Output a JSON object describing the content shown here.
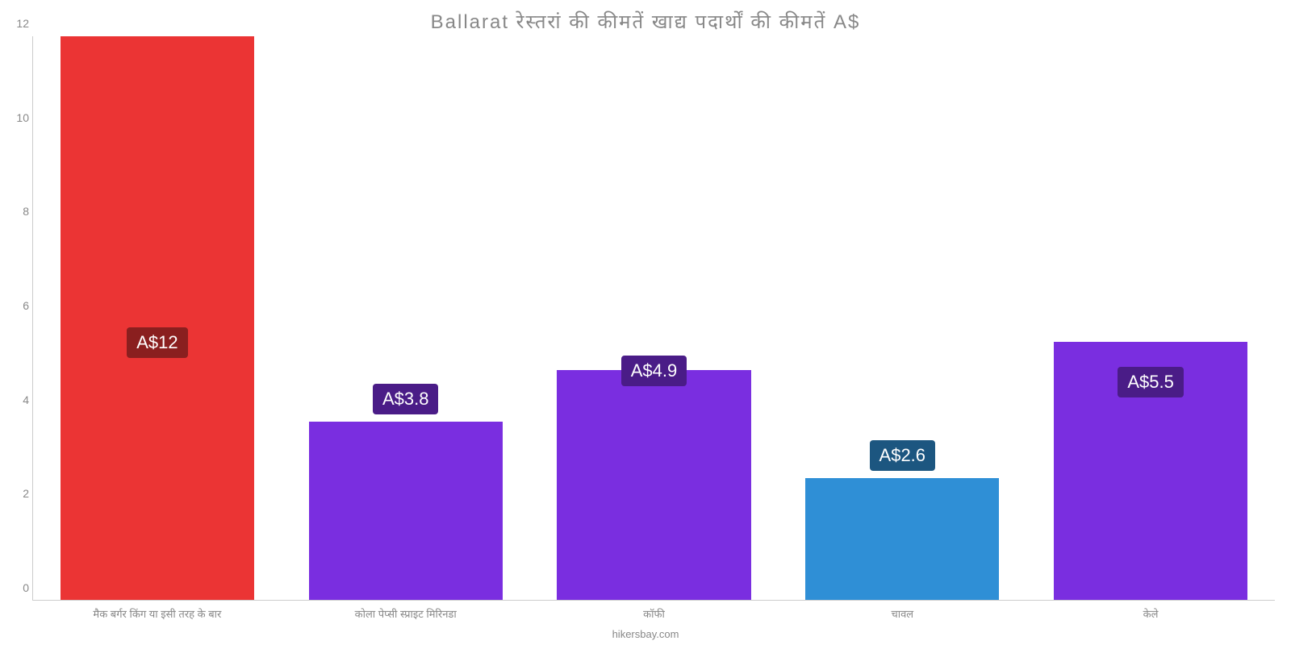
{
  "chart": {
    "type": "bar",
    "title": "Ballarat रेस्तरां   की   कीमतें   खाद्य   पदार्थों   की   कीमतें   A$",
    "title_fontsize": 24,
    "title_color": "#888888",
    "background_color": "#ffffff",
    "axis_color": "#cccccc",
    "label_color": "#888888",
    "label_fontsize": 13,
    "ylim": [
      0,
      12
    ],
    "ytick_step": 2,
    "yticks": [
      0,
      2,
      4,
      6,
      8,
      10,
      12
    ],
    "bar_width_ratio": 0.78,
    "badge_fontsize": 22,
    "categories": [
      "मैक बर्गर किंग या इसी तरह के बार",
      "कोला पेप्सी स्प्राइट मिरिनडा",
      "कॉफी",
      "चावल",
      "केले"
    ],
    "values": [
      12,
      3.8,
      4.9,
      2.6,
      5.5
    ],
    "value_labels": [
      "A$12",
      "A$3.8",
      "A$4.9",
      "A$2.6",
      "A$5.5"
    ],
    "bar_colors": [
      "#eb3434",
      "#7a2ee0",
      "#7a2ee0",
      "#2f8fd6",
      "#7a2ee0"
    ],
    "badge_positions_pct": [
      45,
      35,
      40,
      25,
      38
    ],
    "badge_bg_colors": [
      "#8a1f1f",
      "#4a1c87",
      "#4a1c87",
      "#1c5680",
      "#4a1c87"
    ],
    "badge_text_color": "#ffffff",
    "source": "hikersbay.com"
  }
}
